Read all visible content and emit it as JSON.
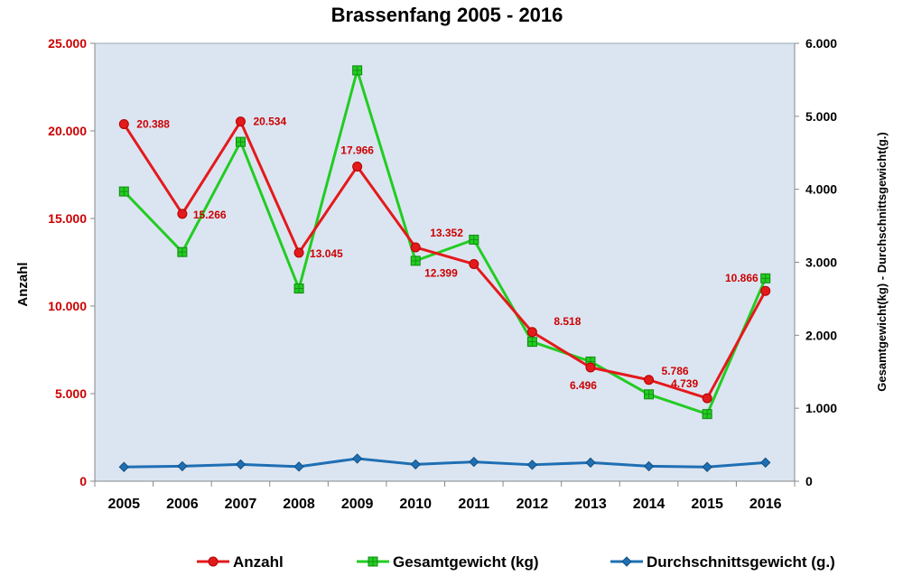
{
  "chart_data": {
    "type": "line",
    "title": "Brassenfang 2005 - 2016",
    "ylabel_left": "Anzahl",
    "ylabel_right": "Gesamtgewicht(kg) - Durchschnittsgewicht(g.)",
    "categories": [
      "2005",
      "2006",
      "2007",
      "2008",
      "2009",
      "2010",
      "2011",
      "2012",
      "2013",
      "2014",
      "2015",
      "2016"
    ],
    "ylim_left": [
      0,
      25000
    ],
    "ylim_right": [
      0,
      6000
    ],
    "yticks_left": [
      "0",
      "5.000",
      "10.000",
      "15.000",
      "20.000",
      "25.000"
    ],
    "yticks_right": [
      "0",
      "1.000",
      "2.000",
      "3.000",
      "4.000",
      "5.000",
      "6.000"
    ],
    "grid": false,
    "plot_background": "#dbe5f1",
    "legend_position": "bottom",
    "series": [
      {
        "name": "Anzahl",
        "axis": "left",
        "color": "#e31a1c",
        "marker": "circle",
        "values": [
          20388,
          15266,
          20534,
          13045,
          17966,
          13352,
          12399,
          8518,
          6496,
          5786,
          4739,
          10866
        ],
        "labels": [
          "20.388",
          "15.266",
          "20.534",
          "13.045",
          "17.966",
          "13.352",
          "12.399",
          "8.518",
          "6.496",
          "5.786",
          "4.739",
          "10.866"
        ]
      },
      {
        "name": "Gesamtgewicht (kg)",
        "axis": "right",
        "color": "#22cc22",
        "marker": "square",
        "values": [
          3970,
          3140,
          4650,
          2640,
          5630,
          3020,
          3310,
          1910,
          1640,
          1190,
          920,
          2780
        ]
      },
      {
        "name": "Durchschnittsgewicht (g.)",
        "axis": "right",
        "color": "#1f6fb4",
        "marker": "diamond",
        "values": [
          195,
          205,
          230,
          200,
          310,
          230,
          265,
          225,
          255,
          205,
          195,
          255
        ]
      }
    ]
  }
}
